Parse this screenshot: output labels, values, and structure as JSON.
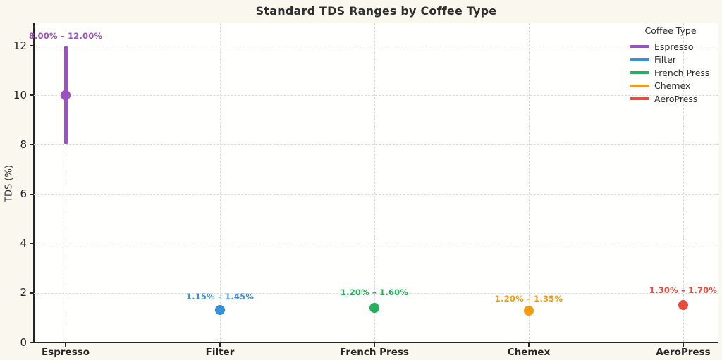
{
  "chart_data": {
    "type": "scatter",
    "title": "Standard TDS Ranges by Coffee Type",
    "xlabel": "",
    "ylabel": "TDS (%)",
    "yticks": [
      0,
      2,
      4,
      6,
      8,
      10,
      12
    ],
    "ylim": [
      0,
      12.9
    ],
    "grid": true,
    "grid_style": "dashed",
    "legend_title": "Coffee Type",
    "legend_position": "upper right",
    "categories": [
      "Espresso",
      "Filter",
      "French Press",
      "Chemex",
      "AeroPress"
    ],
    "series": [
      {
        "name": "Espresso",
        "color": "#9b51bf",
        "min": 8.0,
        "max": 12.0,
        "mid": 10.0,
        "range_label": "8.00% – 12.00%"
      },
      {
        "name": "Filter",
        "color": "#3a8fd4",
        "min": 1.15,
        "max": 1.45,
        "mid": 1.3,
        "range_label": "1.15% – 1.45%"
      },
      {
        "name": "French Press",
        "color": "#27ae60",
        "min": 1.2,
        "max": 1.6,
        "mid": 1.4,
        "range_label": "1.20% – 1.60%"
      },
      {
        "name": "Chemex",
        "color": "#f39c12",
        "min": 1.2,
        "max": 1.35,
        "mid": 1.275,
        "range_label": "1.20% – 1.35%"
      },
      {
        "name": "AeroPress",
        "color": "#e74c3c",
        "min": 1.3,
        "max": 1.7,
        "mid": 1.5,
        "range_label": "1.30% – 1.70%"
      }
    ]
  }
}
